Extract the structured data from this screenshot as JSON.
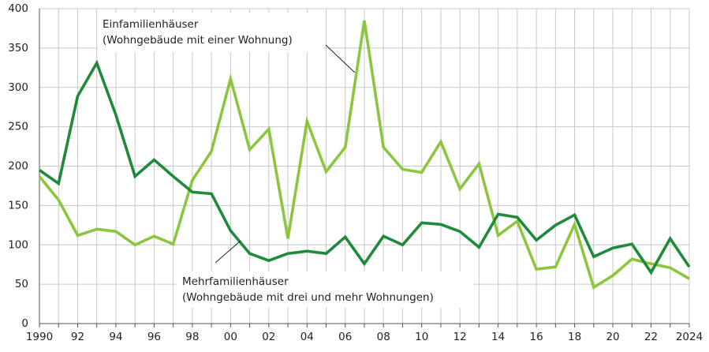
{
  "chart_data": {
    "type": "line",
    "x": [
      1990,
      1991,
      1992,
      1993,
      1994,
      1995,
      1996,
      1997,
      1998,
      1999,
      2000,
      2001,
      2002,
      2003,
      2004,
      2005,
      2006,
      2007,
      2008,
      2009,
      2010,
      2011,
      2012,
      2013,
      2014,
      2015,
      2016,
      2017,
      2018,
      2019,
      2020,
      2021,
      2022,
      2023,
      2024
    ],
    "series": [
      {
        "name": "Einfamilienhäuser",
        "description": "(Wohngebäude mit einer Wohnung)",
        "color": "#8cc63f",
        "values": [
          187,
          157,
          112,
          120,
          117,
          100,
          111,
          101,
          182,
          219,
          311,
          221,
          247,
          108,
          257,
          193,
          224,
          385,
          224,
          196,
          192,
          231,
          171,
          203,
          112,
          130,
          69,
          72,
          126,
          46,
          61,
          82,
          76,
          71,
          57
        ]
      },
      {
        "name": "Mehrfamilienhäuser",
        "description": "(Wohngebäude mit drei und mehr Wohnungen)",
        "color": "#1f8a3c",
        "values": [
          195,
          178,
          289,
          331,
          265,
          187,
          208,
          187,
          167,
          165,
          118,
          89,
          80,
          89,
          92,
          89,
          110,
          76,
          111,
          100,
          128,
          126,
          117,
          97,
          139,
          135,
          106,
          125,
          138,
          85,
          96,
          101,
          65,
          108,
          72
        ]
      }
    ],
    "xlim": [
      1990,
      2024
    ],
    "xticks": [
      1990,
      {
        "value": 1992,
        "label": "92"
      },
      {
        "value": 1994,
        "label": "94"
      },
      {
        "value": 1996,
        "label": "96"
      },
      {
        "value": 1998,
        "label": "98"
      },
      {
        "value": 2000,
        "label": "00"
      },
      {
        "value": 2002,
        "label": "02"
      },
      {
        "value": 2004,
        "label": "04"
      },
      {
        "value": 2006,
        "label": "06"
      },
      {
        "value": 2008,
        "label": "08"
      },
      {
        "value": 2010,
        "label": "10"
      },
      {
        "value": 2012,
        "label": "12"
      },
      {
        "value": 2014,
        "label": "14"
      },
      {
        "value": 2016,
        "label": "16"
      },
      {
        "value": 2018,
        "label": "18"
      },
      {
        "value": 2020,
        "label": "20"
      },
      {
        "value": 2022,
        "label": "22"
      },
      2024
    ],
    "ylim": [
      0,
      400
    ],
    "yticks": [
      0,
      50,
      100,
      150,
      200,
      250,
      300,
      350,
      400
    ],
    "grid": true
  }
}
